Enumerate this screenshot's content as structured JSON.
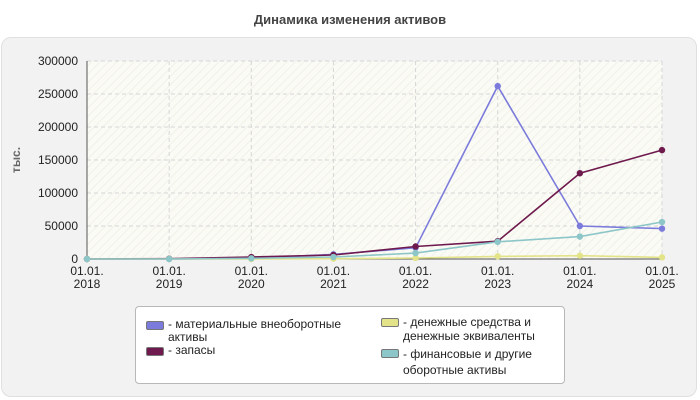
{
  "title": "Динамика изменения активов",
  "chart_data": {
    "type": "line",
    "ylabel": "тыс.",
    "x": [
      "01.01.\n2018",
      "01.01.\n2019",
      "01.01.\n2020",
      "01.01.\n2021",
      "01.01.\n2022",
      "01.01.\n2023",
      "01.01.\n2024",
      "01.01.\n2025"
    ],
    "ylim": [
      0,
      300000
    ],
    "yticks": [
      0,
      50000,
      100000,
      150000,
      200000,
      250000,
      300000
    ],
    "grid": true,
    "legend_position": "bottom",
    "series": [
      {
        "name": "- материальные внеоборотные активы",
        "color": "#7b7bdc",
        "values": [
          0,
          0,
          1000,
          7000,
          17000,
          262000,
          50000,
          46000
        ]
      },
      {
        "name": "- запасы",
        "color": "#6e1a4e",
        "values": [
          0,
          500,
          3000,
          6000,
          19000,
          27000,
          130000,
          165000
        ]
      },
      {
        "name": "- денежные средства и денежные эквиваленты",
        "color": "#e3e38a",
        "values": [
          0,
          0,
          0,
          500,
          1500,
          4000,
          5000,
          2500
        ]
      },
      {
        "name": "- финансовые и другие оборотные активы",
        "color": "#8cc6c8",
        "values": [
          0,
          0,
          1000,
          3000,
          9000,
          26000,
          34000,
          56000
        ]
      }
    ]
  }
}
